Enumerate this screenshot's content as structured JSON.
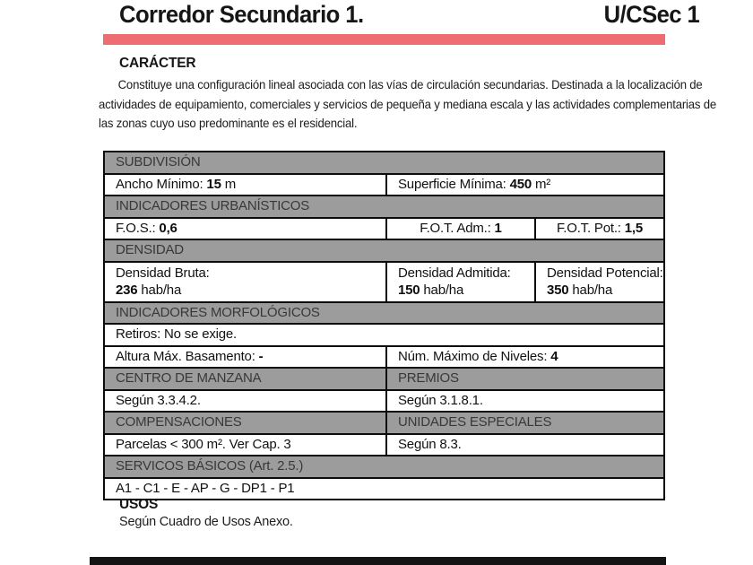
{
  "header": {
    "title": "Corredor Secundario 1.",
    "code": "U/CSec 1"
  },
  "colors": {
    "accent": "#ed6d70",
    "section_gray": "#9c9c9c"
  },
  "caracter": {
    "heading": "CARÁCTER",
    "body_lines": [
      "Constituye una configuración lineal asociada con las vías de circulación secundarias. Destinada a la localización de",
      "actividades de equipamiento, comerciales y servicios de pequeña y mediana escala y las actividades complementarias de",
      "las zonas cuyo uso predominante es el residencial."
    ]
  },
  "table": {
    "subdivision": {
      "header": "SUBDIVISIÓN",
      "ancho_label": "Ancho Mínimo:",
      "ancho_value": "15",
      "ancho_unit": "m",
      "superficie_label": "Superficie Mínima:",
      "superficie_value": "450",
      "superficie_unit": "m²"
    },
    "indicadores_urbanisticos": {
      "header": "INDICADORES URBANÍSTICOS",
      "fos_label": "F.O.S.:",
      "fos_value": "0,6",
      "fot_adm_label": "F.O.T. Adm.:",
      "fot_adm_value": "1",
      "fot_pot_label": "F.O.T. Pot.:",
      "fot_pot_value": "1,5"
    },
    "densidad": {
      "header": "DENSIDAD",
      "bruta_label": "Densidad Bruta:",
      "bruta_value": "236",
      "bruta_unit": "hab/ha",
      "admitida_label": "Densidad Admitida:",
      "admitida_value": "150",
      "admitida_unit": "hab/ha",
      "potencial_label": "Densidad Potencial:",
      "potencial_value": "350",
      "potencial_unit": "hab/ha"
    },
    "indicadores_morfologicos": {
      "header": "INDICADORES MORFOLÓGICOS",
      "retiros": "Retiros: No se exige.",
      "altura_label": "Altura Máx. Basamento:",
      "altura_value": "-",
      "niveles_label": "Núm. Máximo de Niveles:",
      "niveles_value": "4"
    },
    "centro_premios": {
      "centro_header": "CENTRO DE MANZANA",
      "premios_header": "PREMIOS",
      "centro_value": "Según 3.3.4.2.",
      "premios_value": "Según 3.1.8.1."
    },
    "compensaciones_unidades": {
      "compensaciones_header": "COMPENSACIONES",
      "unidades_header": "UNIDADES ESPECIALES",
      "compensaciones_value": "Parcelas < 300 m². Ver Cap. 3",
      "unidades_value": "Según 8.3."
    },
    "servicios": {
      "header": "SERVICOS BÁSICOS (Art. 2.5.)",
      "value": "A1 - C1 - E - AP - G - DP1 - P1"
    }
  },
  "usos": {
    "heading": "USOS",
    "body": "Según Cuadro de Usos Anexo."
  }
}
